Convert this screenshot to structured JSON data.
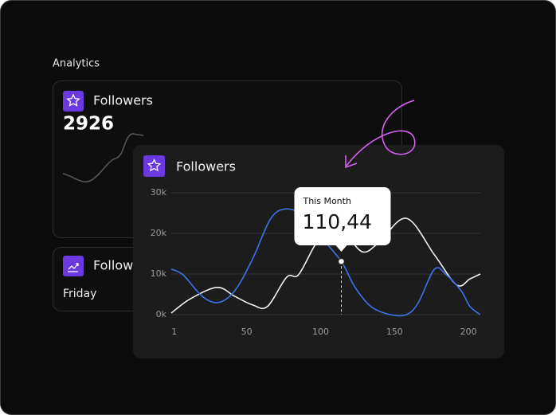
{
  "header": {
    "title": "Analytics"
  },
  "cards": [
    {
      "title": "Followers",
      "value": "2926"
    },
    {
      "title": "Follow",
      "label": "Friday"
    }
  ],
  "chart_data": {
    "type": "line",
    "title": "Followers",
    "annotation": {
      "title": "This Month",
      "value": "110,44"
    },
    "xlim": [
      -1,
      208
    ],
    "xticks": [
      1,
      50,
      100,
      150,
      200
    ],
    "ylim": [
      0,
      30000
    ],
    "yticks": [
      {
        "value": 0,
        "label": "0k"
      },
      {
        "value": 10000,
        "label": "10k"
      },
      {
        "value": 20000,
        "label": "20k"
      },
      {
        "value": 30000,
        "label": "30k"
      }
    ],
    "grid": true,
    "highlight_index": 10,
    "series": [
      {
        "color": "#3d72e8",
        "x": [
          -1,
          7,
          20,
          31,
          42,
          54,
          66,
          76,
          88,
          99,
          114,
          123,
          134,
          147,
          158,
          166,
          177,
          185,
          195,
          201,
          208
        ],
        "values": [
          11200,
          9800,
          4500,
          3000,
          5900,
          13700,
          23500,
          26000,
          24500,
          19600,
          13100,
          6900,
          2000,
          0,
          0,
          2900,
          11200,
          9800,
          5900,
          2000,
          0
        ]
      },
      {
        "color": "#f2f2f2",
        "x": [
          -1,
          12,
          30,
          42,
          54,
          64,
          77,
          85,
          96,
          104,
          115,
          128,
          139,
          158,
          177,
          192,
          201,
          208
        ],
        "values": [
          400,
          3900,
          6700,
          4500,
          2400,
          2000,
          9200,
          9800,
          17000,
          20600,
          20600,
          15500,
          17600,
          23700,
          14700,
          7300,
          8800,
          10000
        ]
      }
    ]
  }
}
